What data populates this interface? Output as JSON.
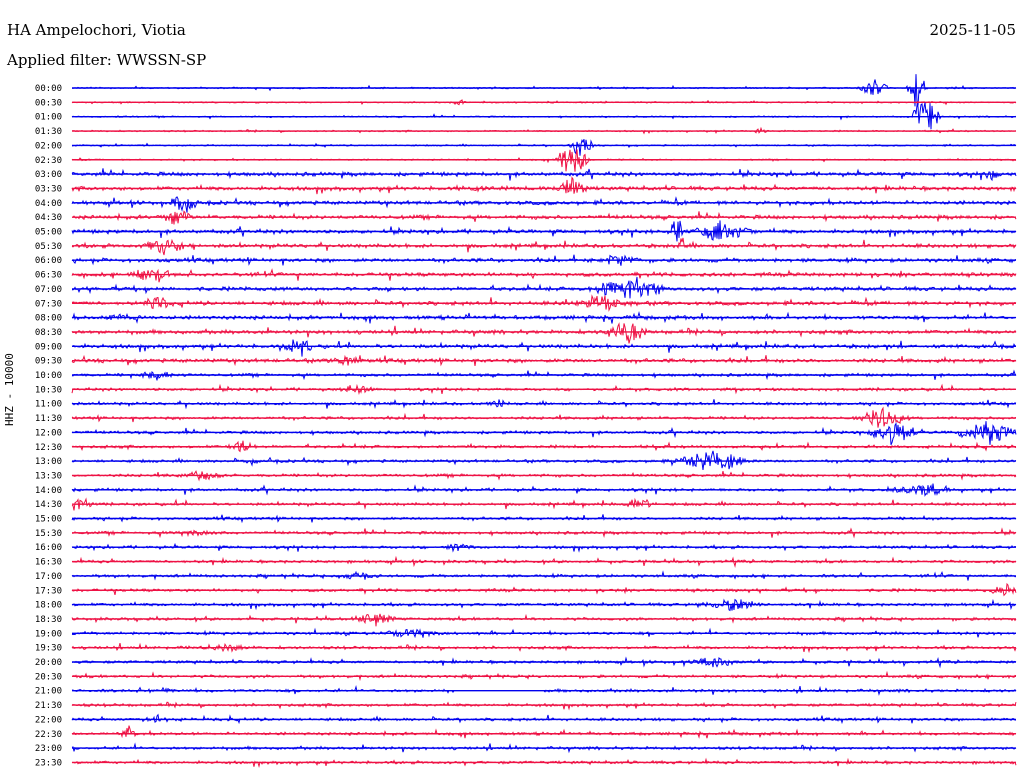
{
  "header": {
    "station": "HA Ampelochori, Viotia",
    "filter": "Applied filter: WWSSN-SP",
    "date": "2025-11-05"
  },
  "chart_data": {
    "type": "line",
    "title": "HA Ampelochori, Viotia",
    "subtitle": "Applied filter: WWSSN-SP",
    "ylabel": "HHZ - 10000",
    "rows": [
      "00:00",
      "00:30",
      "01:00",
      "01:30",
      "02:00",
      "02:30",
      "03:00",
      "03:30",
      "04:00",
      "04:30",
      "05:00",
      "05:30",
      "06:00",
      "06:30",
      "07:00",
      "07:30",
      "08:00",
      "08:30",
      "09:00",
      "09:30",
      "10:00",
      "10:30",
      "11:00",
      "11:30",
      "12:00",
      "12:30",
      "13:00",
      "13:30",
      "14:00",
      "14:30",
      "15:00",
      "15:30",
      "16:00",
      "16:30",
      "17:00",
      "17:30",
      "18:00",
      "18:30",
      "19:00",
      "19:30",
      "20:00",
      "20:30",
      "21:00",
      "21:30",
      "22:00",
      "22:30",
      "23:00",
      "23:30"
    ],
    "series_colors": [
      "#0000ee",
      "#ee1144"
    ],
    "grid": false
  }
}
